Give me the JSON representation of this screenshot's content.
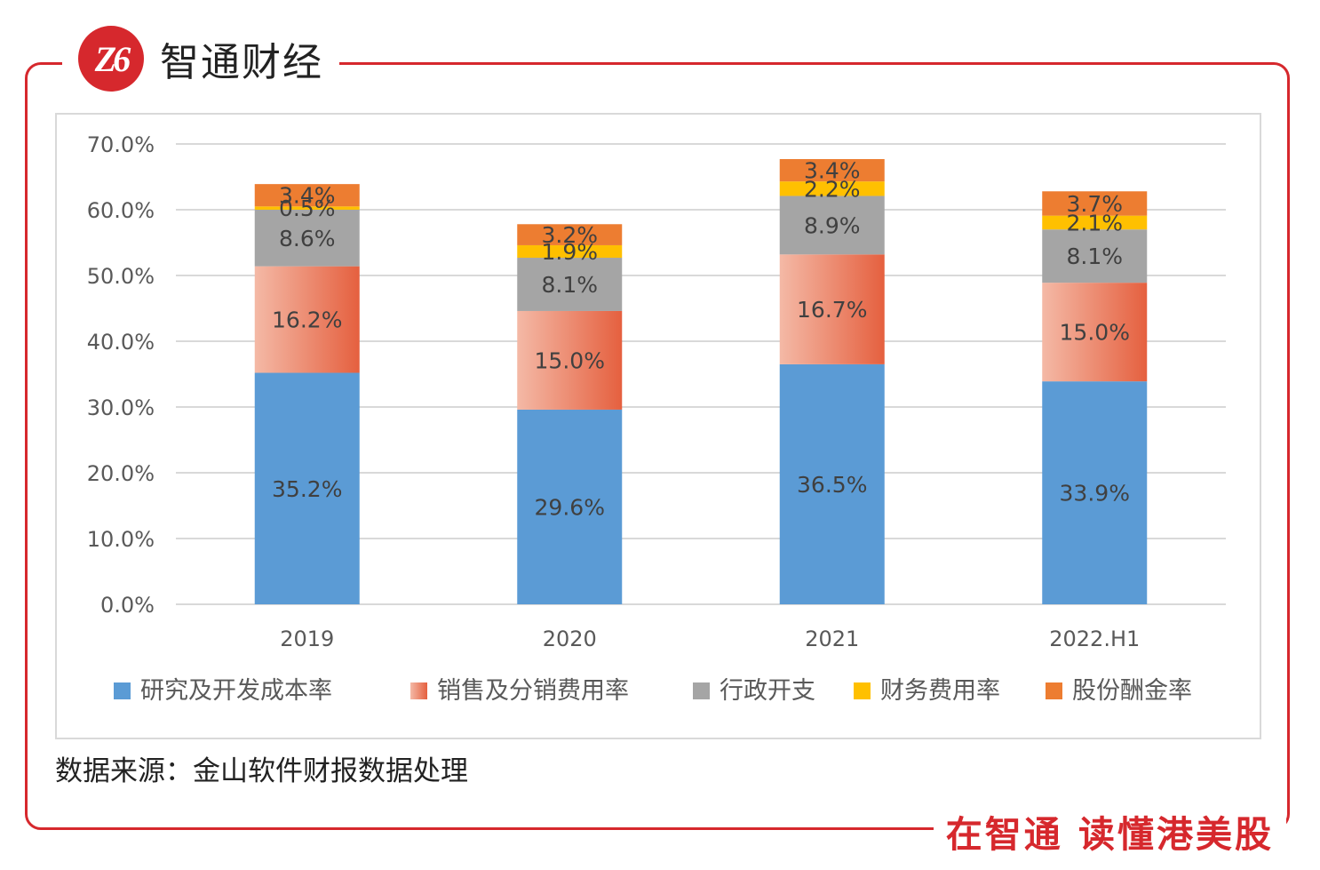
{
  "brand": {
    "logo_text": "Z6",
    "name": "智通财经"
  },
  "slogan": "在智通 读懂港美股",
  "source": "数据来源：金山软件财报数据处理",
  "colors": {
    "frame": "#d6282d",
    "grid": "#d9d9d9",
    "axis_text": "#595959"
  },
  "chart_data": {
    "type": "bar",
    "stacked": true,
    "title": "",
    "xlabel": "",
    "ylabel": "",
    "ylim": [
      0,
      70
    ],
    "yticks": [
      "0.0%",
      "10.0%",
      "20.0%",
      "30.0%",
      "40.0%",
      "50.0%",
      "60.0%",
      "70.0%"
    ],
    "grid": true,
    "legend_position": "bottom",
    "categories": [
      "2019",
      "2020",
      "2021",
      "2022.H1"
    ],
    "series": [
      {
        "name": "研究及开发成本率",
        "color": "#5b9bd5",
        "values": [
          35.2,
          29.6,
          36.5,
          33.9
        ],
        "labels": [
          "35.2%",
          "29.6%",
          "36.5%",
          "33.9%"
        ]
      },
      {
        "name": "销售及分销费用率",
        "color": "#eb7a5c",
        "gradient": [
          "#f4b9a6",
          "#e5603f"
        ],
        "values": [
          16.2,
          15.0,
          16.7,
          15.0
        ],
        "labels": [
          "16.2%",
          "15.0%",
          "16.7%",
          "15.0%"
        ]
      },
      {
        "name": "行政开支",
        "color": "#a5a5a5",
        "values": [
          8.6,
          8.1,
          8.9,
          8.1
        ],
        "labels": [
          "8.6%",
          "8.1%",
          "8.9%",
          "8.1%"
        ]
      },
      {
        "name": "财务费用率",
        "color": "#ffc000",
        "values": [
          0.5,
          1.9,
          2.2,
          2.1
        ],
        "labels": [
          "0.5%",
          "1.9%",
          "2.2%",
          "2.1%"
        ]
      },
      {
        "name": "股份酬金率",
        "color": "#ed7d31",
        "values": [
          3.4,
          3.2,
          3.4,
          3.7
        ],
        "labels": [
          "3.4%",
          "3.2%",
          "3.4%",
          "3.7%"
        ]
      }
    ]
  }
}
